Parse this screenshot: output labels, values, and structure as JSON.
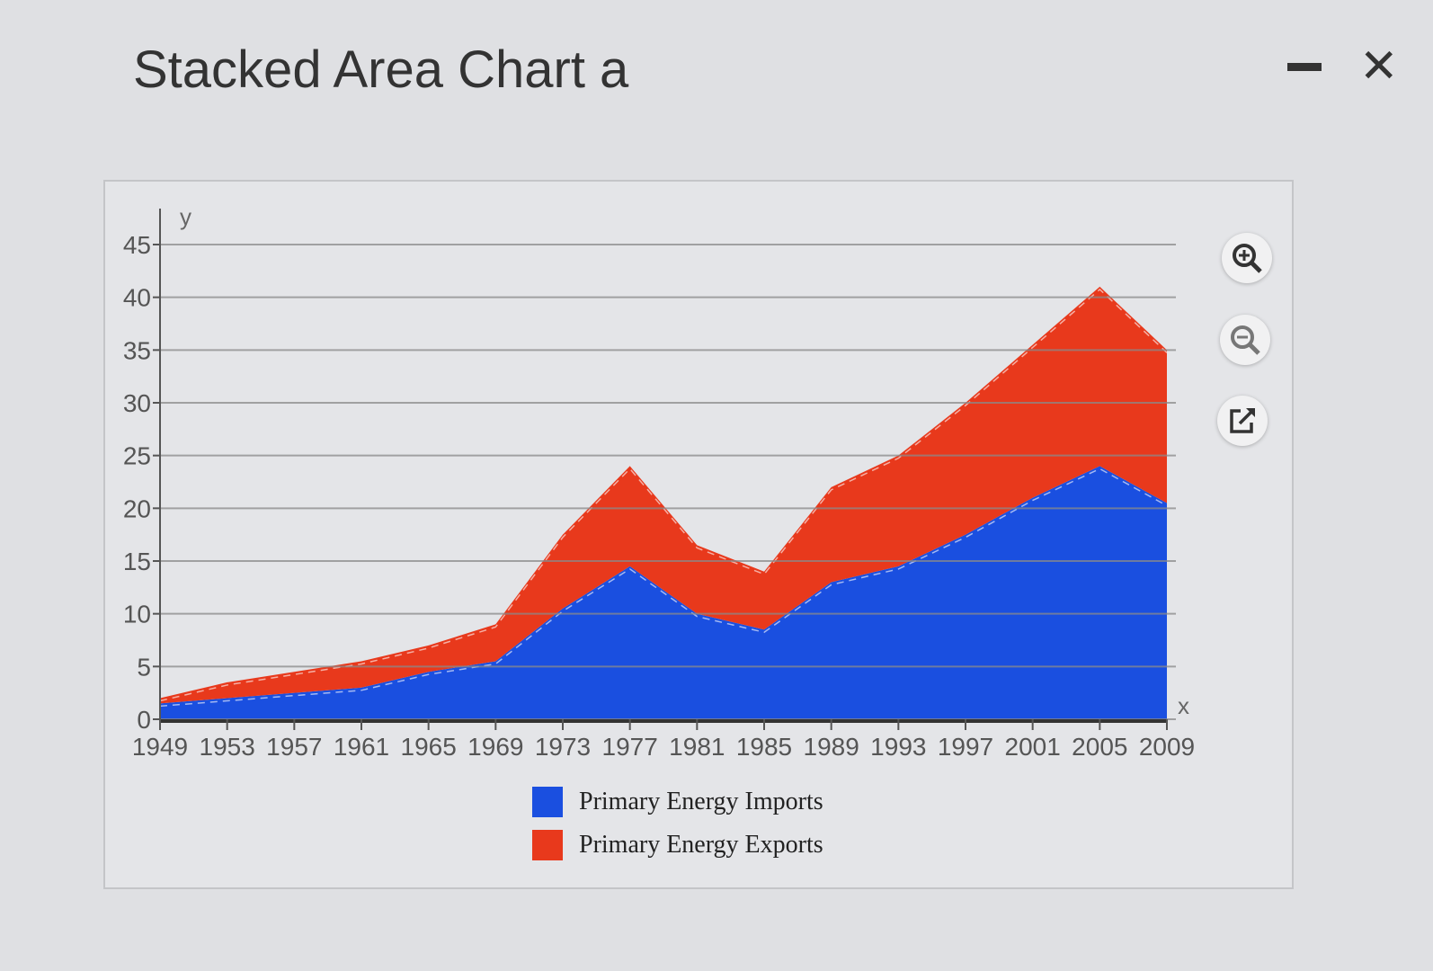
{
  "window": {
    "title": "Stacked Area Chart a",
    "minimize_icon": "minimize-icon",
    "close_icon": "close-icon"
  },
  "toolbar": {
    "zoom_in_icon": "zoom-in-icon",
    "zoom_out_icon": "zoom-out-icon",
    "export_icon": "external-link-icon"
  },
  "chart_data": {
    "type": "area",
    "stacked": true,
    "title": "",
    "xlabel": "x",
    "ylabel": "y",
    "xlim": [
      1949,
      2009
    ],
    "ylim": [
      0,
      45
    ],
    "x_ticks": [
      "1949",
      "1953",
      "1957",
      "1961",
      "1965",
      "1969",
      "1973",
      "1977",
      "1981",
      "1985",
      "1989",
      "1993",
      "1997",
      "2001",
      "2005",
      "2009"
    ],
    "y_ticks": [
      "0",
      "5",
      "10",
      "15",
      "20",
      "25",
      "30",
      "35",
      "40",
      "45"
    ],
    "grid": true,
    "legend_position": "bottom",
    "x": [
      1949,
      1953,
      1957,
      1961,
      1965,
      1969,
      1973,
      1977,
      1981,
      1985,
      1989,
      1993,
      1997,
      2001,
      2005,
      2009
    ],
    "series": [
      {
        "name": "Primary Energy Imports",
        "color": "#1a4fe0",
        "values": [
          1.5,
          2,
          2.5,
          3,
          4.5,
          5.5,
          10.5,
          14.5,
          10,
          8.5,
          13,
          14.5,
          17.5,
          21,
          24,
          20.5
        ]
      },
      {
        "name": "Primary Energy Exports",
        "color": "#e8391c",
        "values": [
          0.5,
          1.5,
          2,
          2.5,
          2.5,
          3.5,
          7,
          9.5,
          6.5,
          5.5,
          9,
          10.5,
          12.5,
          14.5,
          17,
          14.5
        ]
      }
    ]
  }
}
